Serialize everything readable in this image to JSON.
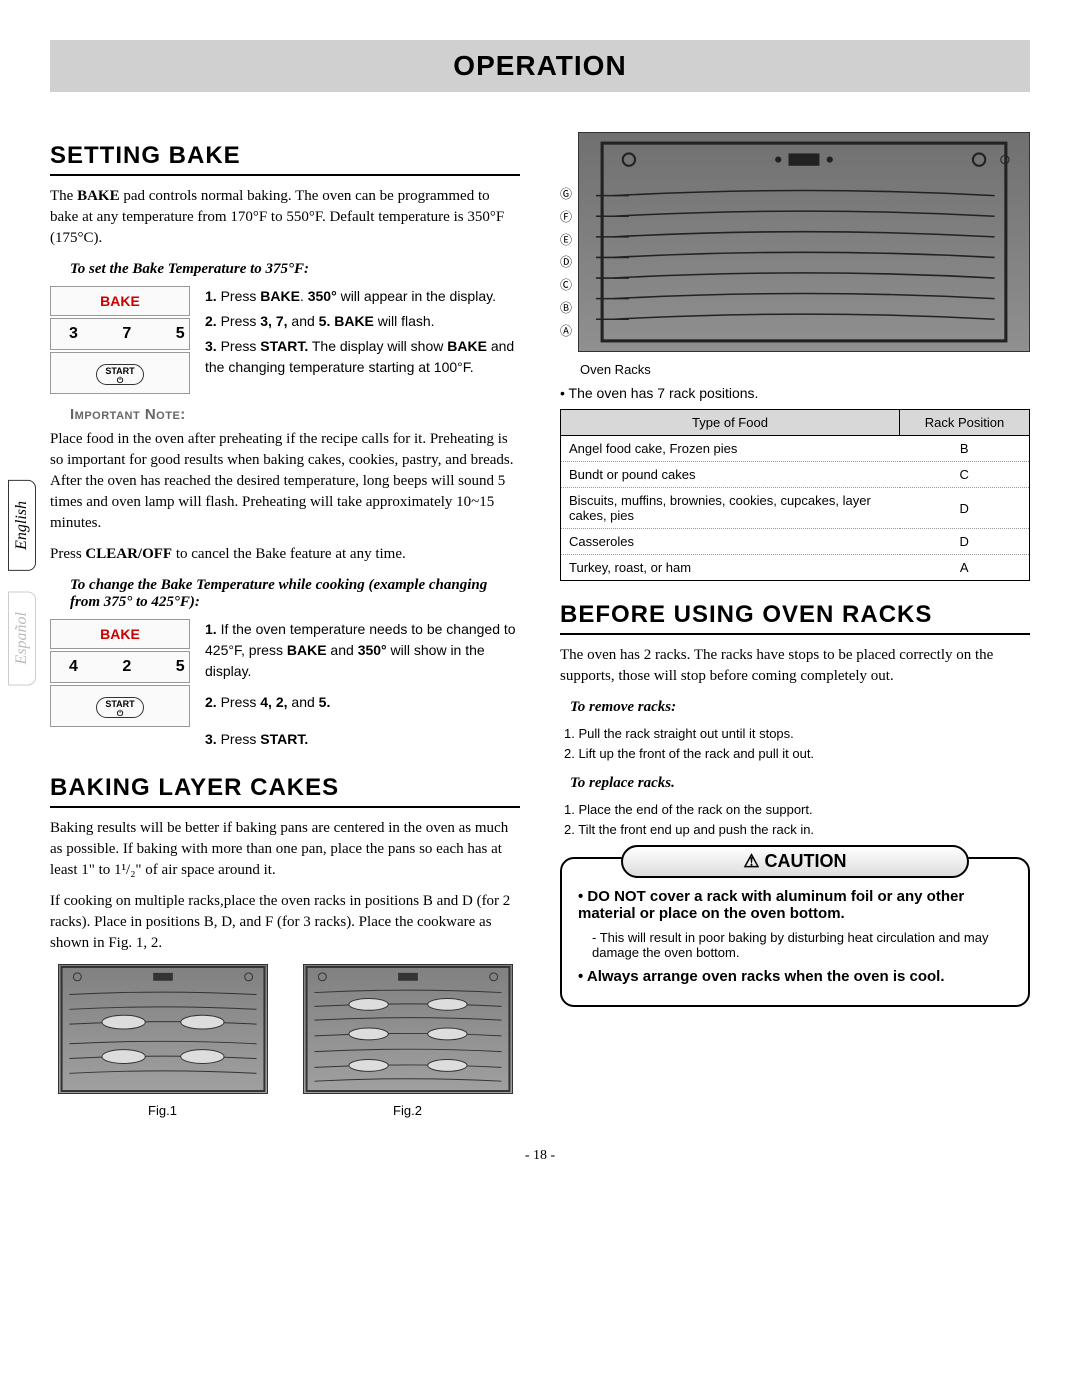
{
  "page": {
    "title": "OPERATION",
    "number": "- 18 -"
  },
  "langs": {
    "en": "English",
    "es": "Español"
  },
  "settingBake": {
    "heading": "SETTING BAKE",
    "intro_pre": "The ",
    "intro_bold": "BAKE",
    "intro_post": " pad controls normal baking. The oven can be programmed to bake at any temperature from 170°F to 550°F. Default temperature is 350°F (175°C).",
    "sub1": "To set the Bake Temperature to 375°F:",
    "keypad1": {
      "bake": "BAKE",
      "nums": "3 7 5",
      "start": "START"
    },
    "steps1": [
      {
        "n": "1.",
        "pre": "Press ",
        "b1": "BAKE",
        "mid": ". ",
        "b2": "350°",
        "post": " will appear in the display."
      },
      {
        "n": "2.",
        "pre": "Press ",
        "b1": "3, 7,",
        "mid": " and ",
        "b2": "5. BAKE",
        "post": " will flash."
      },
      {
        "n": "3.",
        "pre": "Press ",
        "b1": "START.",
        "mid": " The display will show ",
        "b2": "BAKE",
        "post": " and the changing temperature starting at 100°F."
      }
    ],
    "importantLabel": "Important Note:",
    "note1": "Place food in the oven after preheating if the recipe calls for it. Preheating is so important for good results when baking cakes, cookies, pastry, and breads. After the oven has reached the desired temperature, long beeps will sound 5 times and oven lamp will flash. Preheating will take approximately 10~15 minutes.",
    "note2_pre": "Press ",
    "note2_bold": "CLEAR/OFF",
    "note2_post": " to cancel the Bake feature at any time.",
    "sub2": "To change the Bake Temperature while cooking (example changing from 375° to 425°F):",
    "keypad2": {
      "bake": "BAKE",
      "nums": "4 2 5",
      "start": "START"
    },
    "steps2": [
      {
        "n": "1.",
        "pre": "If the oven temperature needs to be changed to 425°F, press ",
        "b1": "BAKE",
        "mid": " and ",
        "b2": "350°",
        "post": " will show in the display."
      },
      {
        "n": "2.",
        "pre": "Press ",
        "b1": "4, 2,",
        "mid": " and ",
        "b2": "5.",
        "post": ""
      },
      {
        "n": "3.",
        "pre": "Press ",
        "b1": "START.",
        "mid": "",
        "b2": "",
        "post": ""
      }
    ]
  },
  "layerCakes": {
    "heading": "BAKING LAYER CAKES",
    "p1": "Baking results will be better if baking pans are centered in the oven as much as possible. If baking with more than one pan, place the pans so each has at least 1\" to 1¹/₂\" of air space around it.",
    "p2": "If cooking on multiple racks,place the oven racks in positions B and D (for 2 racks). Place in positions B, D, and F (for 3 racks). Place the cookware as shown in Fig. 1, 2.",
    "fig1": "Fig.1",
    "fig2": "Fig.2"
  },
  "ovenDiagram": {
    "labels": [
      "G",
      "F",
      "E",
      "D",
      "C",
      "B",
      "A"
    ],
    "caption": "Oven Racks",
    "bullet": "• The oven has 7 rack positions."
  },
  "rackTable": {
    "headers": [
      "Type of Food",
      "Rack Position"
    ],
    "rows": [
      [
        "Angel food cake, Frozen pies",
        "B"
      ],
      [
        "Bundt or pound cakes",
        "C"
      ],
      [
        "Biscuits, muffins, brownies, cookies, cupcakes, layer cakes, pies",
        "D"
      ],
      [
        "Casseroles",
        "D"
      ],
      [
        "Turkey, roast, or ham",
        "A"
      ]
    ]
  },
  "beforeRacks": {
    "heading": "BEFORE USING OVEN RACKS",
    "intro": "The oven has 2 racks. The racks have stops to be placed correctly on the supports, those will stop before coming completely out.",
    "removeHeading": "To remove racks:",
    "removeSteps": [
      "1. Pull the rack straight out until it stops.",
      "2. Lift up the front of the rack and pull it out."
    ],
    "replaceHeading": "To replace racks.",
    "replaceSteps": [
      "1. Place the end of the rack on the support.",
      "2. Tilt the front end up and push the rack in."
    ]
  },
  "caution": {
    "header": "⚠ CAUTION",
    "items": [
      {
        "bold": true,
        "text": "• DO NOT cover a rack with aluminum foil or any other material or place on the oven bottom."
      },
      {
        "bold": false,
        "text": "- This will result in poor baking by disturbing heat circulation and may damage the oven bottom."
      },
      {
        "bold": true,
        "text": "• Always arrange oven racks when the oven is cool."
      }
    ]
  }
}
